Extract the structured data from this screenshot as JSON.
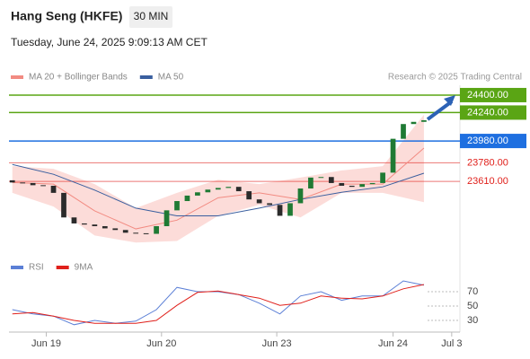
{
  "header": {
    "title": "Hang Seng (HKFE)",
    "timeframe": "30 MIN",
    "datetime": "Tuesday, June 24, 2025 9:09:13 AM CET"
  },
  "chart_data": [
    {
      "type": "candlestick",
      "source": "Research © 2025 Trading Central",
      "x": [
        0,
        1,
        2,
        3,
        4,
        5,
        6,
        7,
        8,
        9,
        10,
        11,
        12,
        13,
        14,
        15,
        16,
        17,
        18,
        19,
        20,
        21,
        22,
        23,
        24,
        25,
        26,
        27,
        28,
        29,
        30,
        31,
        32,
        33,
        34,
        35,
        36,
        37,
        38,
        39,
        40
      ],
      "open": [
        23620,
        23600,
        23595,
        23575,
        23570,
        23505,
        23280,
        23225,
        23215,
        23200,
        23180,
        23165,
        23140,
        23135,
        23130,
        23200,
        23345,
        23430,
        23480,
        23510,
        23535,
        23550,
        23560,
        23520,
        23445,
        23410,
        23395,
        23295,
        23410,
        23545,
        23645,
        23650,
        23595,
        23570,
        23560,
        23585,
        23595,
        23690,
        24000,
        24135,
        24155
      ],
      "close": [
        23600,
        23595,
        23575,
        23570,
        23505,
        23280,
        23225,
        23215,
        23200,
        23180,
        23165,
        23140,
        23135,
        23130,
        23200,
        23345,
        23430,
        23480,
        23510,
        23535,
        23550,
        23560,
        23520,
        23445,
        23410,
        23395,
        23295,
        23410,
        23545,
        23645,
        23650,
        23595,
        23570,
        23560,
        23585,
        23595,
        23690,
        24000,
        24135,
        24155,
        24170
      ],
      "up_color": "#1f7a34",
      "down_color": "#2b2b2b",
      "xlim": [
        -0.5,
        43.5
      ],
      "ylim": [
        22970,
        24490
      ],
      "series": [
        {
          "name": "MA 20 + Bollinger Bands",
          "color": "#f28b82",
          "band_color": "#fbd3d0",
          "x": [
            0,
            4,
            8,
            12,
            16,
            20,
            24,
            28,
            32,
            36,
            40
          ],
          "values": [
            23600,
            23585,
            23340,
            23175,
            23255,
            23460,
            23505,
            23445,
            23585,
            23585,
            23915
          ],
          "upper": [
            23750,
            23725,
            23585,
            23365,
            23505,
            23625,
            23585,
            23645,
            23710,
            23750,
            24220
          ],
          "lower": [
            23505,
            23380,
            23115,
            23050,
            23065,
            23295,
            23395,
            23280,
            23505,
            23505,
            23420
          ]
        },
        {
          "name": "MA 50",
          "color": "#3a5f9f",
          "x": [
            0,
            4,
            8,
            12,
            16,
            20,
            24,
            28,
            32,
            36,
            40
          ],
          "values": [
            23765,
            23675,
            23530,
            23365,
            23295,
            23295,
            23365,
            23445,
            23510,
            23560,
            23685
          ]
        }
      ],
      "levels": [
        {
          "value": 24400,
          "label": "24400.00",
          "color": "#5aa514",
          "style": "box"
        },
        {
          "value": 24240,
          "label": "24240.00",
          "color": "#5aa514",
          "style": "box"
        },
        {
          "value": 23980,
          "label": "23980.00",
          "color": "#1e6fe0",
          "style": "box"
        },
        {
          "value": 23780,
          "label": "23780.00",
          "color": "#e0201b",
          "style": "text"
        },
        {
          "value": 23610,
          "label": "23610.00",
          "color": "#e0201b",
          "style": "text"
        }
      ]
    },
    {
      "type": "line",
      "xlim": [
        -0.5,
        43.5
      ],
      "xticks": [
        {
          "value": 3.3,
          "label": "Jun 19"
        },
        {
          "value": 14.5,
          "label": "Jun 20"
        },
        {
          "value": 25.7,
          "label": "Jun 23"
        },
        {
          "value": 37,
          "label": "Jun 24"
        },
        {
          "value": 42.7,
          "label": "Jul 3"
        }
      ],
      "ylim": [
        15,
        90
      ],
      "yticks": [
        30,
        50,
        70
      ],
      "series": [
        {
          "name": "RSI",
          "color": "#5b7fd6",
          "x": [
            0,
            2,
            4,
            6,
            8,
            10,
            12,
            14,
            16,
            18,
            20,
            22,
            24,
            26,
            28,
            30,
            32,
            34,
            36,
            38,
            40
          ],
          "values": [
            45,
            39,
            36,
            24,
            30,
            26,
            29,
            45,
            76,
            70,
            70,
            66,
            54,
            39,
            64,
            70,
            58,
            64,
            64,
            85,
            79
          ]
        },
        {
          "name": "9MA",
          "color": "#e0201b",
          "x": [
            0,
            2,
            4,
            6,
            8,
            10,
            12,
            14,
            16,
            18,
            20,
            22,
            24,
            26,
            28,
            30,
            32,
            34,
            36,
            38,
            40
          ],
          "values": [
            39,
            41,
            36,
            30,
            26,
            26,
            26,
            30,
            51,
            69,
            71,
            66,
            61,
            51,
            54,
            64,
            61,
            60,
            64,
            74,
            80
          ]
        }
      ]
    }
  ]
}
